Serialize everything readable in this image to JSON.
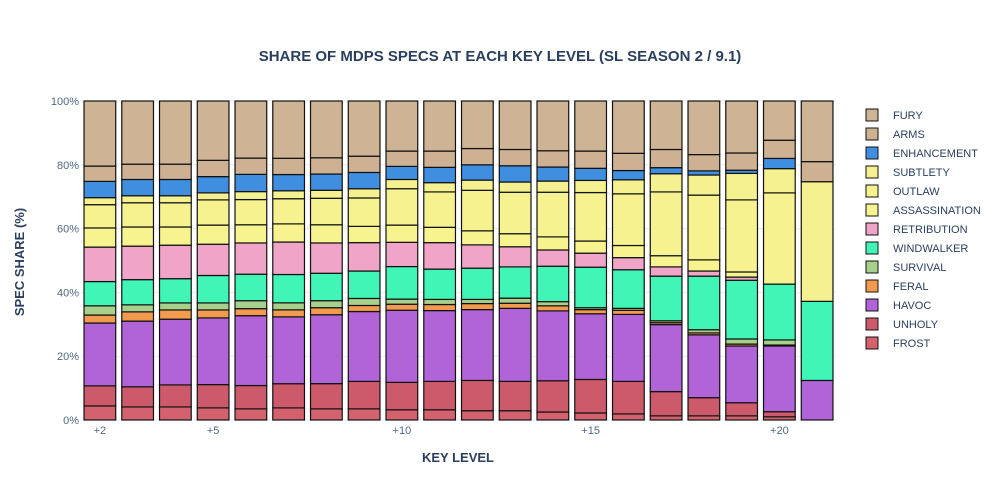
{
  "chart_data": {
    "type": "bar",
    "stacked": true,
    "normalized": true,
    "title": "SHARE OF MDPS SPECS AT EACH KEY LEVEL (SL SEASON 2 / 9.1)",
    "xlabel": "KEY LEVEL",
    "ylabel": "SPEC SHARE (%)",
    "ylim": [
      0,
      100
    ],
    "y_ticks": [
      "0%",
      "20%",
      "40%",
      "60%",
      "80%",
      "100%"
    ],
    "categories": [
      2,
      3,
      4,
      5,
      6,
      7,
      8,
      9,
      10,
      11,
      12,
      13,
      14,
      15,
      16,
      17,
      18,
      19,
      20,
      21
    ],
    "x_ticks": [
      {
        "value": 2,
        "label": "+2"
      },
      {
        "value": 5,
        "label": "+5"
      },
      {
        "value": 10,
        "label": "+10"
      },
      {
        "value": 15,
        "label": "+15"
      },
      {
        "value": 20,
        "label": "+20"
      }
    ],
    "grid": true,
    "legend_placement": "right",
    "series": [
      {
        "name": "FROST",
        "color": "#d4626e",
        "values": [
          4.4,
          4.1,
          4.1,
          3.8,
          3.5,
          3.8,
          3.5,
          3.5,
          3.2,
          3.2,
          2.9,
          2.9,
          2.5,
          2.2,
          1.9,
          1.3,
          1.3,
          1.3,
          1.0,
          0
        ]
      },
      {
        "name": "UNHOLY",
        "color": "#cc5a6a",
        "values": [
          6.3,
          6.3,
          6.9,
          7.3,
          7.3,
          7.6,
          7.9,
          8.6,
          8.6,
          8.9,
          9.5,
          9.2,
          9.8,
          10.5,
          10.2,
          7.6,
          5.7,
          4.1,
          1.6,
          0
        ]
      },
      {
        "name": "HAVOC",
        "color": "#b163d8",
        "values": [
          19.7,
          20.6,
          20.6,
          20.9,
          21.9,
          21.0,
          21.6,
          21.9,
          22.6,
          22.2,
          22.2,
          22.9,
          21.9,
          20.6,
          21.0,
          21.0,
          19.7,
          17.8,
          20.6,
          12.4
        ]
      },
      {
        "name": "FERAL",
        "color": "#f29a4e",
        "values": [
          2.5,
          2.9,
          2.9,
          2.5,
          2.2,
          2.2,
          2.2,
          1.9,
          1.9,
          1.9,
          1.9,
          1.6,
          1.6,
          1.3,
          1.3,
          0.6,
          0.6,
          0.6,
          0.3,
          0
        ]
      },
      {
        "name": "SURVIVAL",
        "color": "#a8d08d",
        "values": [
          2.9,
          2.2,
          2.2,
          2.2,
          2.5,
          2.2,
          2.2,
          2.2,
          1.6,
          1.6,
          1.3,
          1.6,
          1.3,
          0.6,
          0.6,
          0.6,
          1.0,
          1.6,
          1.6,
          0
        ]
      },
      {
        "name": "WINDWALKER",
        "color": "#40f5b6",
        "values": [
          7.6,
          7.9,
          7.6,
          8.6,
          8.3,
          8.9,
          8.6,
          8.6,
          10.2,
          9.5,
          9.8,
          9.8,
          11.1,
          12.7,
          12.1,
          14.0,
          16.8,
          18.4,
          17.5,
          24.8
        ]
      },
      {
        "name": "RETRIBUTION",
        "color": "#f0a5c8",
        "values": [
          10.8,
          10.5,
          10.5,
          9.8,
          9.8,
          10.2,
          9.5,
          8.9,
          7.6,
          8.3,
          7.3,
          6.3,
          5.1,
          4.4,
          3.8,
          2.9,
          1.6,
          1.0,
          0,
          0
        ]
      },
      {
        "name": "ASSASSINATION",
        "color": "#f7f38e",
        "values": [
          6.0,
          6.0,
          5.7,
          6.0,
          5.7,
          5.7,
          5.7,
          5.1,
          5.4,
          4.8,
          4.4,
          4.1,
          4.1,
          3.8,
          3.8,
          3.5,
          3.5,
          1.6,
          0,
          0
        ]
      },
      {
        "name": "OUTLAW",
        "color": "#f6f290",
        "values": [
          7.3,
          7.6,
          7.6,
          7.9,
          7.9,
          7.9,
          8.3,
          8.9,
          11.4,
          11.1,
          12.7,
          13.0,
          14.0,
          15.2,
          16.2,
          20.0,
          20.3,
          22.6,
          28.6,
          0
        ]
      },
      {
        "name": "SUBTLETY",
        "color": "#f5f191",
        "values": [
          2.2,
          2.2,
          2.2,
          2.2,
          2.5,
          2.5,
          2.5,
          2.9,
          2.9,
          2.9,
          3.2,
          3.2,
          3.5,
          3.8,
          4.4,
          5.7,
          6.3,
          8.3,
          7.6,
          37.5
        ]
      },
      {
        "name": "ENHANCEMENT",
        "color": "#3f8ee0",
        "values": [
          5.1,
          5.1,
          5.1,
          5.1,
          5.4,
          5.1,
          5.1,
          5.1,
          4.1,
          4.8,
          4.8,
          5.1,
          4.4,
          3.8,
          2.9,
          1.9,
          1.3,
          1.0,
          3.2,
          0
        ]
      },
      {
        "name": "ARMS",
        "color": "#cdb192",
        "values": [
          4.8,
          4.8,
          4.8,
          5.1,
          5.1,
          5.1,
          5.1,
          5.1,
          4.8,
          5.1,
          5.1,
          5.1,
          5.1,
          5.4,
          5.4,
          5.7,
          5.1,
          5.4,
          5.7,
          6.3
        ]
      },
      {
        "name": "FURY",
        "color": "#cfb395",
        "values": [
          20.4,
          19.8,
          19.8,
          18.6,
          17.9,
          18.0,
          17.8,
          17.3,
          15.7,
          15.7,
          14.9,
          15.2,
          15.6,
          15.7,
          16.4,
          15.2,
          16.8,
          16.3,
          12.3,
          19.0
        ]
      }
    ]
  }
}
